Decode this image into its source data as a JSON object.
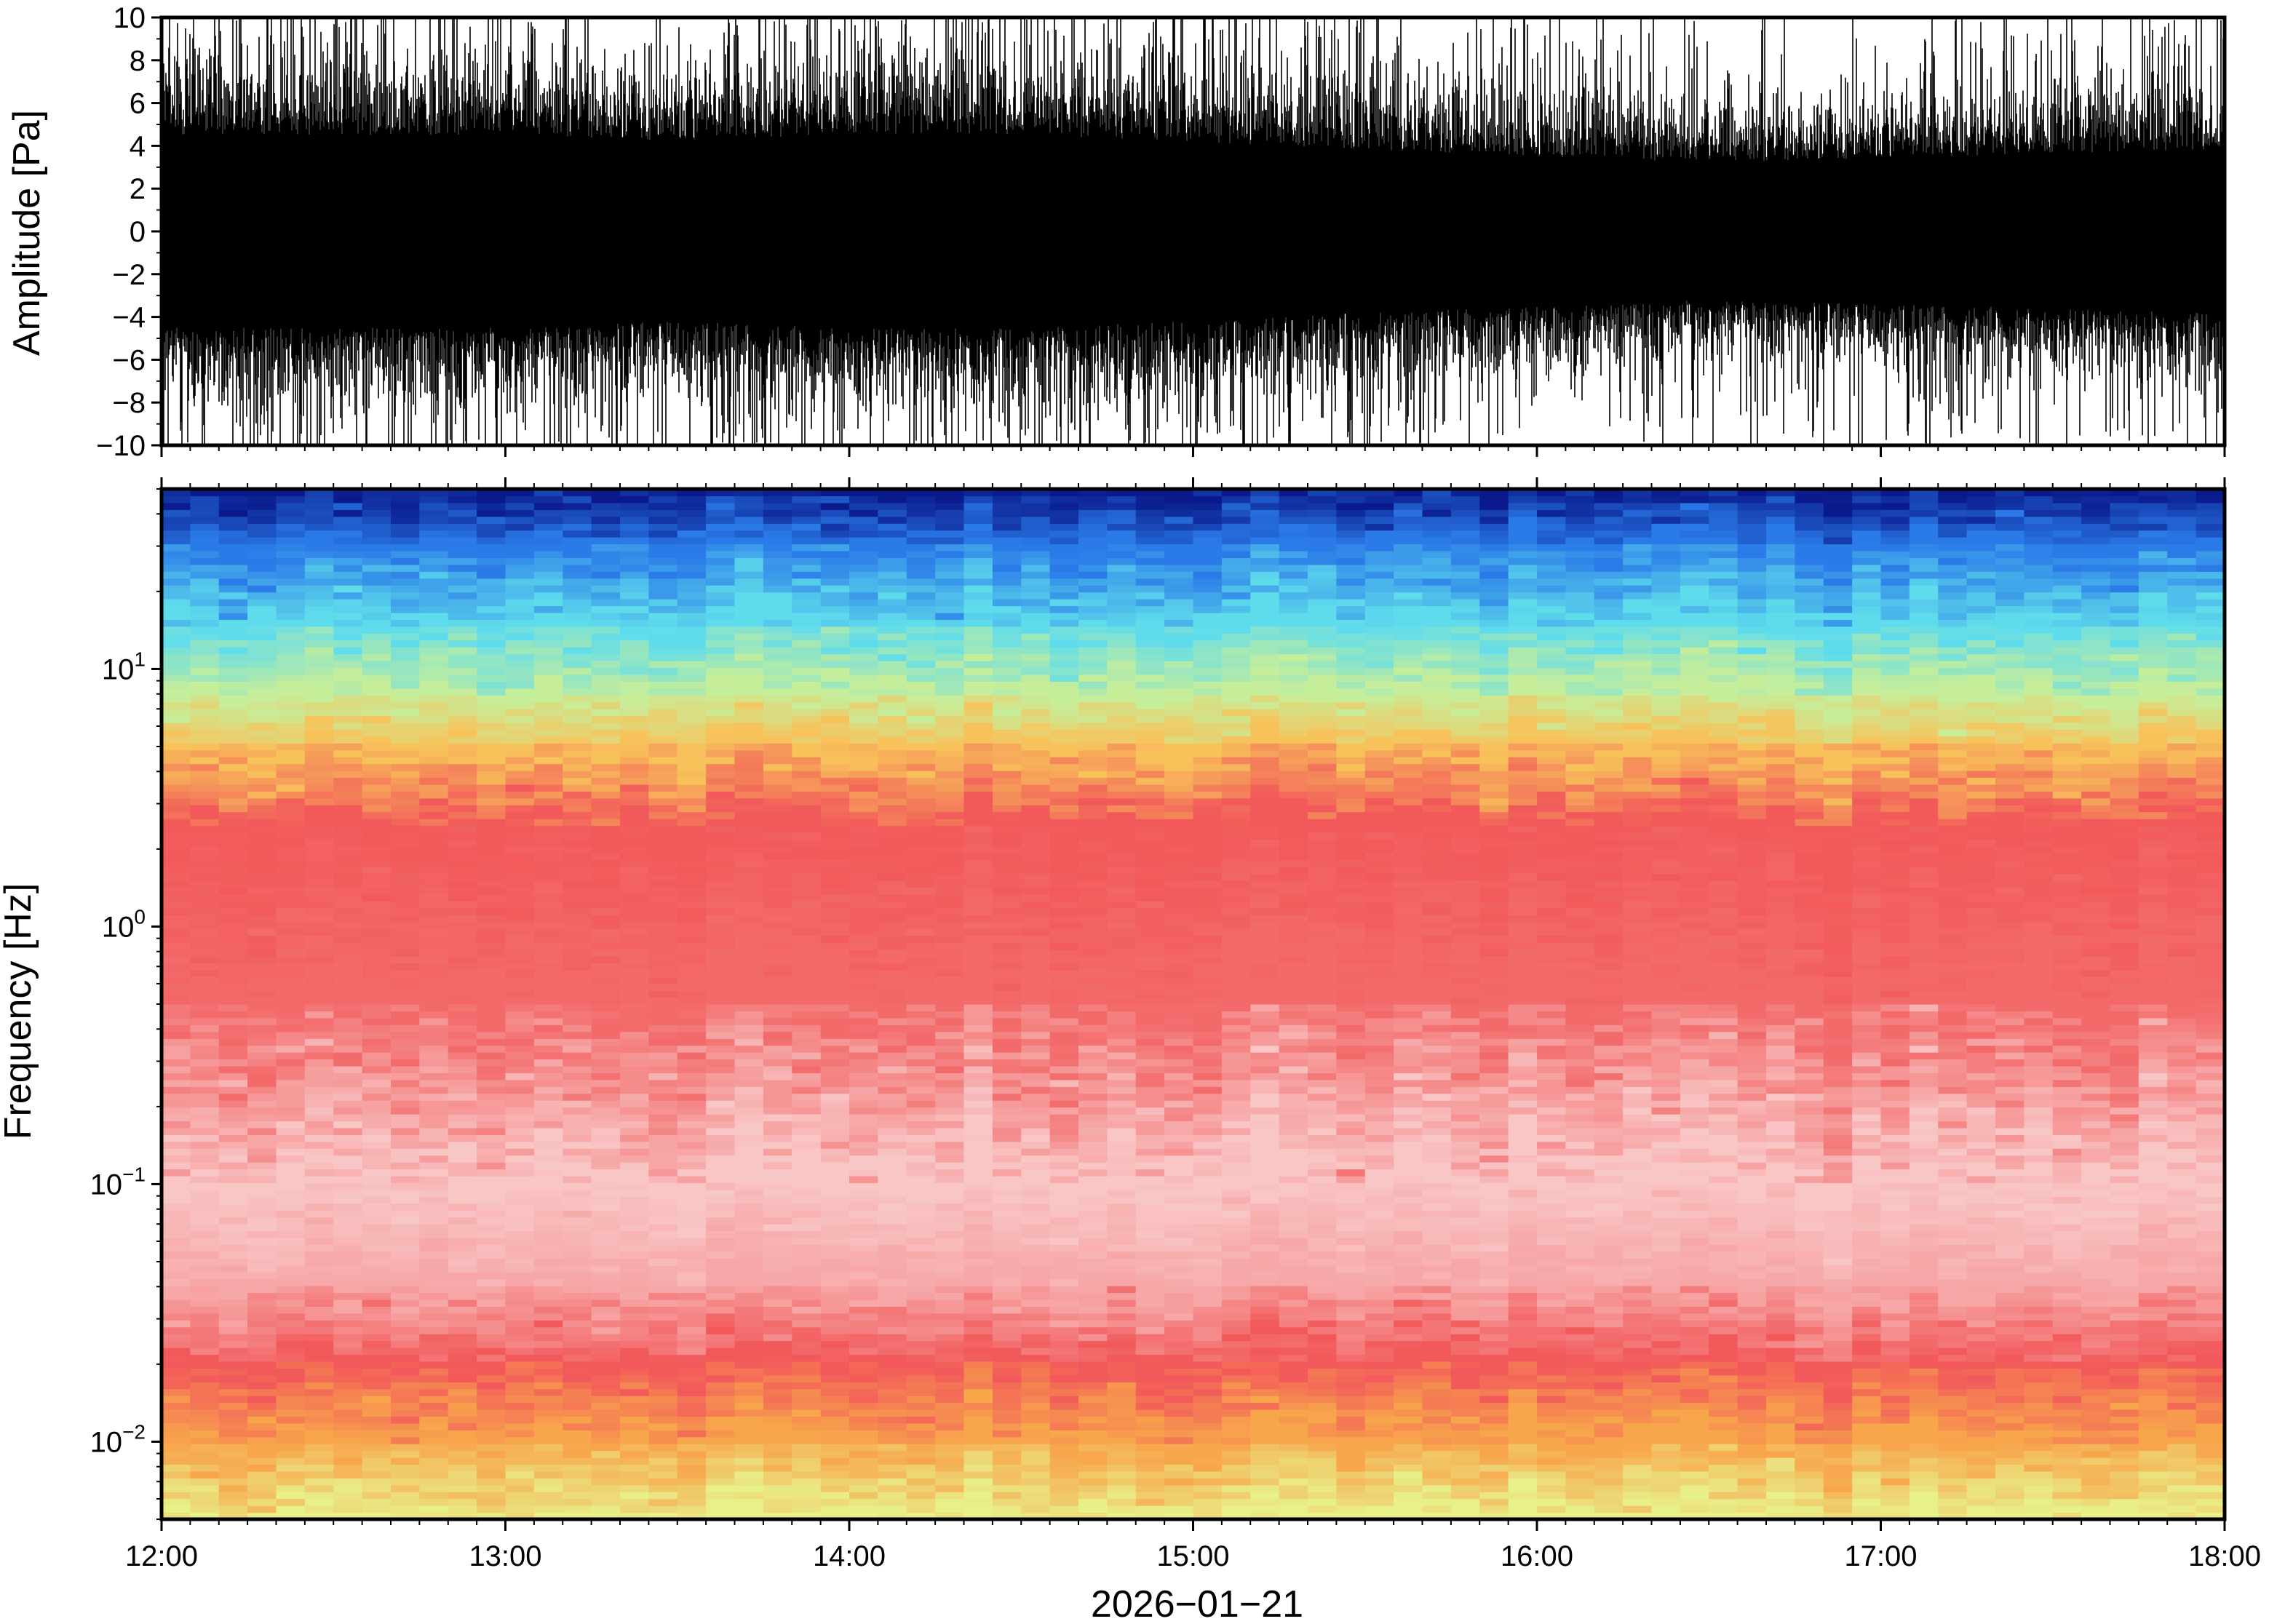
{
  "chart_data": [
    {
      "type": "line",
      "ylabel": "Amplitude [Pa]",
      "ylim": [
        -10,
        10
      ],
      "yticks": [
        -10,
        -8,
        -6,
        -4,
        -2,
        0,
        2,
        4,
        6,
        8,
        10
      ],
      "ytick_labels": [
        "−10",
        "−8",
        "−6",
        "−4",
        "−2",
        "0",
        "2",
        "4",
        "6",
        "8",
        "10"
      ],
      "xlim": [
        "2026-01-21 12:00",
        "2026-01-21 18:00"
      ],
      "grid": false,
      "color": "#000000",
      "series": [
        {
          "time": [
            "12:00",
            "12:30",
            "13:00",
            "13:30",
            "14:00",
            "14:30",
            "15:00",
            "15:30",
            "16:00",
            "16:30",
            "17:00",
            "17:30",
            "18:00"
          ],
          "upper_envelope": [
            10,
            10,
            10,
            10,
            10,
            10,
            10,
            9.5,
            9,
            8.5,
            9,
            9.5,
            10
          ],
          "lower_envelope": [
            -10,
            -10,
            -10,
            -10,
            -10,
            -10,
            -10,
            -9,
            -8,
            -8,
            -8.5,
            -9,
            -10
          ],
          "typical_abs_amplitude": [
            4.5,
            4.5,
            4.5,
            4.2,
            4.5,
            4.5,
            4.2,
            3.8,
            3.5,
            3.2,
            3.4,
            3.6,
            3.8
          ]
        }
      ]
    },
    {
      "type": "heatmap",
      "ylabel": "Frequency [Hz]",
      "xlabel": "2026−01−21",
      "yscale": "log",
      "ylim": [
        0.005,
        50
      ],
      "yticks": [
        {
          "base": "10",
          "exp": "−2",
          "value": 0.01
        },
        {
          "base": "10",
          "exp": "−1",
          "value": 0.1
        },
        {
          "base": "10",
          "exp": "0",
          "value": 1
        },
        {
          "base": "10",
          "exp": "1",
          "value": 10
        }
      ],
      "xlim": [
        "2026-01-21 12:00",
        "2026-01-21 18:00"
      ],
      "xticks": [
        "12:00",
        "13:00",
        "14:00",
        "15:00",
        "16:00",
        "17:00",
        "18:00"
      ],
      "colormap": [
        "#0a1a8c",
        "#1c54e0",
        "#2ea2f2",
        "#5fdcec",
        "#a9f0b4",
        "#e8f08a",
        "#f8c25a",
        "#f6874c",
        "#f2595a",
        "#f7a0a0",
        "#fde6e6"
      ],
      "grid": false,
      "description_profile_hz": [
        {
          "freq": 50,
          "color": "#0a1a8c"
        },
        {
          "freq": 30,
          "color": "#2a7ae8"
        },
        {
          "freq": 15,
          "color": "#5fdcec"
        },
        {
          "freq": 8,
          "color": "#c6ee9a"
        },
        {
          "freq": 5,
          "color": "#f8c25a"
        },
        {
          "freq": 2.5,
          "color": "#f2595a"
        },
        {
          "freq": 0.5,
          "color": "#f36a6a"
        },
        {
          "freq": 0.1,
          "color": "#f9c6c6"
        },
        {
          "freq": 0.04,
          "color": "#f7a7a7"
        },
        {
          "freq": 0.02,
          "color": "#f2595a"
        },
        {
          "freq": 0.01,
          "color": "#f8a64c"
        },
        {
          "freq": 0.005,
          "color": "#e8f08a"
        }
      ]
    }
  ]
}
